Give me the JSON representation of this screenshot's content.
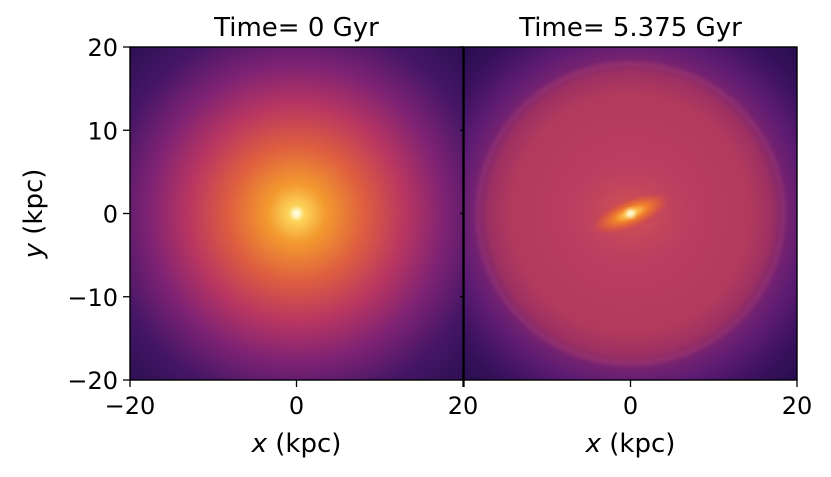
{
  "chart_data": [
    {
      "type": "heatmap",
      "title": "Time= 0 Gyr",
      "x_var": "x",
      "x_unit": " (kpc)",
      "y_var": "y",
      "y_unit": " (kpc)",
      "xlim": [
        -20,
        20
      ],
      "ylim": [
        -20,
        20
      ],
      "xticks": [
        -20,
        0,
        20
      ],
      "xtick_labels": [
        "−20",
        "0",
        "20"
      ],
      "yticks": [
        -20,
        -10,
        0,
        10,
        20
      ],
      "ytick_labels": [
        "−20",
        "−10",
        "0",
        "10",
        "20"
      ],
      "colormap": "inferno",
      "morphology": "smooth round disk, bright central concentration, no bar",
      "colors": {
        "background": "#2b0f55",
        "outer": "#5a1a7a",
        "mid": "#c8395c",
        "inner": "#f08a2a",
        "core": "#fff2a0"
      }
    },
    {
      "type": "heatmap",
      "title": "Time= 5.375 Gyr",
      "x_var": "x",
      "x_unit": " (kpc)",
      "xlim": [
        -20,
        20
      ],
      "ylim": [
        -20,
        20
      ],
      "xticks": [
        -20,
        0,
        20
      ],
      "xtick_labels": [
        "",
        "0",
        "20"
      ],
      "colormap": "inferno",
      "morphology": "extended disk with faint ring structure and a tilted central bar",
      "colors": {
        "background": "#2b0f55",
        "outer": "#6b1d7a",
        "disk": "#b63a5a",
        "bar": "#f07a2c",
        "core": "#fff0a0"
      }
    }
  ]
}
